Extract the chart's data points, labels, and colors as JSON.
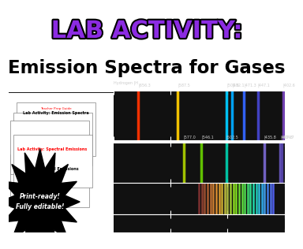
{
  "title_line1": "LAB ACTIVITY:",
  "title_line2": "Emission Spectra for Gases",
  "title_line1_color": "#8B2BE2",
  "title_line2_color": "#000000",
  "bg_color": "#ffffff",
  "header_bg": "#ffffff",
  "spectra_bg": "#111111",
  "badge_text": "Print-ready!\nFully editable!",
  "hydrogen_lines": [
    {
      "wl": 656.3,
      "color": "#FF3300"
    },
    {
      "wl": 587.5,
      "color": "#FFCC00"
    },
    {
      "wl": 501.5,
      "color": "#00CCFF"
    },
    {
      "wl": 492.1,
      "color": "#00AAFF"
    },
    {
      "wl": 471.3,
      "color": "#3366FF"
    },
    {
      "wl": 447.1,
      "color": "#4444CC"
    },
    {
      "wl": 402.6,
      "color": "#7744BB"
    }
  ],
  "second_spectrum_lines": [
    {
      "wl": 577.0,
      "color": "#AACC00"
    },
    {
      "wl": 546.1,
      "color": "#66CC00"
    },
    {
      "wl": 502.5,
      "color": "#00CCAA"
    },
    {
      "wl": 435.8,
      "color": "#7766CC"
    },
    {
      "wl": 407.8,
      "color": "#6655BB"
    },
    {
      "wl": 404.7,
      "color": "#5544AA"
    }
  ],
  "third_spectrum_lines_colors": [
    [
      420,
      "#5566FF"
    ],
    [
      425,
      "#5577FF"
    ],
    [
      430,
      "#4488FF"
    ],
    [
      435,
      "#44AAFF"
    ],
    [
      440,
      "#33BBFF"
    ],
    [
      445,
      "#33CCEE"
    ],
    [
      450,
      "#22DDCC"
    ],
    [
      455,
      "#22EEBB"
    ],
    [
      460,
      "#33EE99"
    ],
    [
      465,
      "#44EE77"
    ],
    [
      470,
      "#55EE55"
    ],
    [
      475,
      "#66EE44"
    ],
    [
      480,
      "#77EE33"
    ],
    [
      485,
      "#88EE22"
    ],
    [
      490,
      "#99EE22"
    ],
    [
      495,
      "#AADD33"
    ],
    [
      500,
      "#BBCC44"
    ],
    [
      505,
      "#CCCC44"
    ],
    [
      510,
      "#DDBB33"
    ],
    [
      515,
      "#EEAA33"
    ],
    [
      520,
      "#EE9933"
    ],
    [
      525,
      "#DD8833"
    ],
    [
      530,
      "#CC7733"
    ],
    [
      535,
      "#BB6633"
    ],
    [
      540,
      "#AA5533"
    ],
    [
      545,
      "#994433"
    ],
    [
      550,
      "#883333"
    ]
  ],
  "axis_color": "#ffffff",
  "tick_color": "#ffffff",
  "label_color": "#cccccc",
  "wl_min": 400,
  "wl_max": 700
}
